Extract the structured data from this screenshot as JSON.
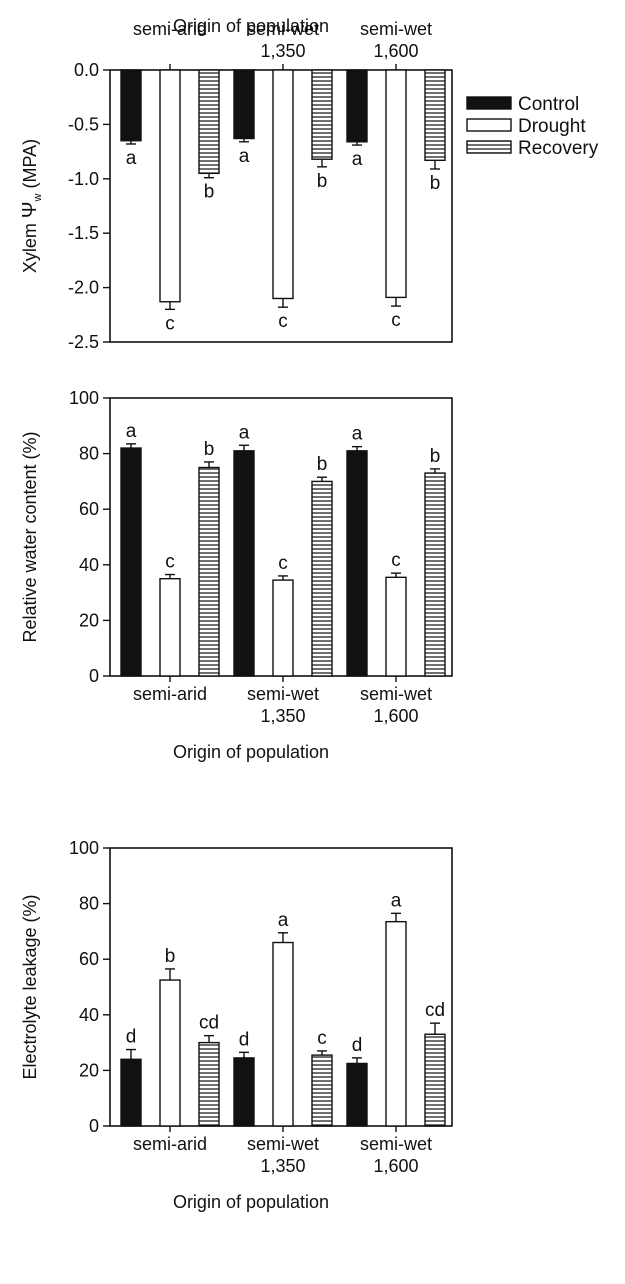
{
  "chart_data": [
    {
      "type": "bar",
      "title": "",
      "xlabel": "Origin of population",
      "ylabel_prefix": "Xylem ",
      "ylabel_symbol": "Ψ",
      "ylabel_sub": "w",
      "ylabel_suffix": " (MPA)",
      "categories": [
        {
          "line1": "semi-arid",
          "line2": ""
        },
        {
          "line1": "semi-wet",
          "line2": "1,350"
        },
        {
          "line1": "semi-wet",
          "line2": "1,600"
        }
      ],
      "ylim": [
        -2.5,
        0
      ],
      "yticks": [
        {
          "value": 0,
          "label": "0.0"
        },
        {
          "value": -0.5,
          "label": "-0.5"
        },
        {
          "value": -1.0,
          "label": "-1.0"
        },
        {
          "value": -1.5,
          "label": "-1.5"
        },
        {
          "value": -2.0,
          "label": "-2.0"
        },
        {
          "value": -2.5,
          "label": "-2.5"
        }
      ],
      "series": [
        {
          "name": "Control",
          "values": [
            -0.65,
            -0.63,
            -0.66
          ],
          "errors": [
            0.03,
            0.03,
            0.03
          ],
          "letters": [
            "a",
            "a",
            "a"
          ]
        },
        {
          "name": "Drought",
          "values": [
            -2.13,
            -2.1,
            -2.09
          ],
          "errors": [
            0.07,
            0.08,
            0.08
          ],
          "letters": [
            "c",
            "c",
            "c"
          ]
        },
        {
          "name": "Recovery",
          "values": [
            -0.95,
            -0.82,
            -0.83
          ],
          "errors": [
            0.04,
            0.07,
            0.08
          ],
          "letters": [
            "b",
            "b",
            "b"
          ]
        }
      ],
      "legend": {
        "placement": "right",
        "entries": [
          {
            "label": "Control",
            "fill": "solid"
          },
          {
            "label": "Drought",
            "fill": "open"
          },
          {
            "label": "Recovery",
            "fill": "hatched"
          }
        ]
      }
    },
    {
      "type": "bar",
      "title": "",
      "xlabel": "Origin of population",
      "ylabel": "Relative water content (%)",
      "categories": [
        {
          "line1": "semi-arid",
          "line2": ""
        },
        {
          "line1": "semi-wet",
          "line2": "1,350"
        },
        {
          "line1": "semi-wet",
          "line2": "1,600"
        }
      ],
      "ylim": [
        0,
        100
      ],
      "yticks": [
        {
          "value": 0,
          "label": "0"
        },
        {
          "value": 20,
          "label": "20"
        },
        {
          "value": 40,
          "label": "40"
        },
        {
          "value": 60,
          "label": "60"
        },
        {
          "value": 80,
          "label": "80"
        },
        {
          "value": 100,
          "label": "100"
        }
      ],
      "series": [
        {
          "name": "Control",
          "values": [
            82,
            81,
            81
          ],
          "errors": [
            1.5,
            2,
            1.5
          ],
          "letters": [
            "a",
            "a",
            "a"
          ]
        },
        {
          "name": "Drought",
          "values": [
            35,
            34.5,
            35.5
          ],
          "errors": [
            1.5,
            1.5,
            1.5
          ],
          "letters": [
            "c",
            "c",
            "c"
          ]
        },
        {
          "name": "Recovery",
          "values": [
            75,
            70,
            73
          ],
          "errors": [
            2,
            1.5,
            1.5
          ],
          "letters": [
            "b",
            "b",
            "b"
          ]
        }
      ]
    },
    {
      "type": "bar",
      "title": "",
      "xlabel": "Origin of population",
      "ylabel": "Electrolyte leakage (%)",
      "categories": [
        {
          "line1": "semi-arid",
          "line2": ""
        },
        {
          "line1": "semi-wet",
          "line2": "1,350"
        },
        {
          "line1": "semi-wet",
          "line2": "1,600"
        }
      ],
      "ylim": [
        0,
        100
      ],
      "yticks": [
        {
          "value": 0,
          "label": "0"
        },
        {
          "value": 20,
          "label": "20"
        },
        {
          "value": 40,
          "label": "40"
        },
        {
          "value": 60,
          "label": "60"
        },
        {
          "value": 80,
          "label": "80"
        },
        {
          "value": 100,
          "label": "100"
        }
      ],
      "series": [
        {
          "name": "Control",
          "values": [
            24,
            24.5,
            22.5
          ],
          "errors": [
            3.5,
            2,
            2
          ],
          "letters": [
            "d",
            "d",
            "d"
          ]
        },
        {
          "name": "Drought",
          "values": [
            52.5,
            66,
            73.5
          ],
          "errors": [
            4,
            3.5,
            3
          ],
          "letters": [
            "b",
            "a",
            "a"
          ]
        },
        {
          "name": "Recovery",
          "values": [
            30,
            25.5,
            33
          ],
          "errors": [
            2.5,
            1.5,
            4
          ],
          "letters": [
            "cd",
            "c",
            "cd"
          ]
        }
      ]
    }
  ],
  "colors": {
    "control": "#111111",
    "drought": "#ffffff",
    "recovery_stripe": "#111111",
    "recovery_bg": "#ffffff"
  }
}
